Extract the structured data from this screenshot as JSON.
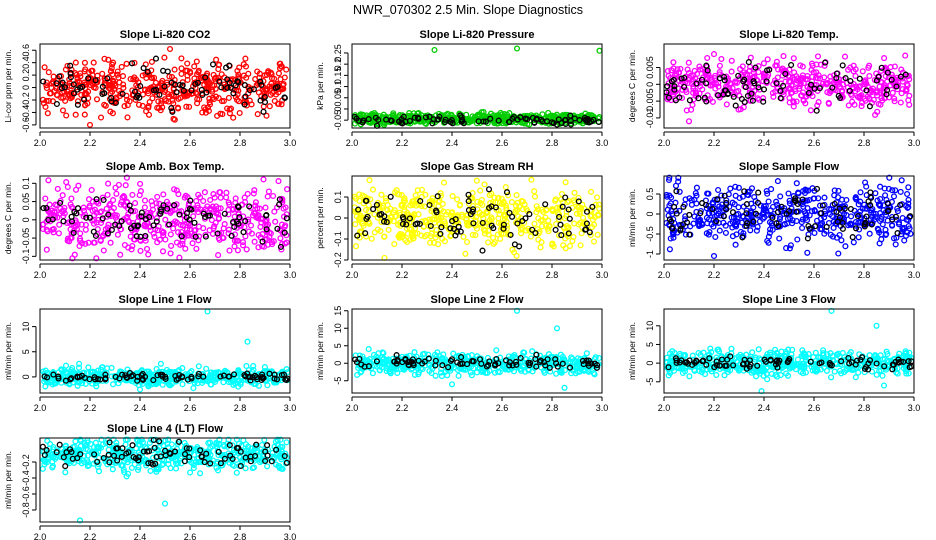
{
  "figure": {
    "title": "NWR_070302  2.5 Min. Slope Diagnostics"
  },
  "chart_data": [
    {
      "type": "scatter",
      "title": "Slope Li-820 CO2",
      "ylabel": "Li-cor ppm per min.",
      "xlim": [
        2.0,
        3.0
      ],
      "ylim": [
        -0.65,
        0.7
      ],
      "yticks": [
        -0.6,
        -0.4,
        -0.2,
        0.0,
        0.2,
        0.4,
        0.6
      ],
      "xticks": [
        2.0,
        2.2,
        2.4,
        2.6,
        2.8,
        3.0
      ],
      "series": [
        {
          "color": "#ff0000",
          "spread": 0.2,
          "outliers": [
            [
              2.52,
              0.62
            ],
            [
              2.2,
              -0.6
            ],
            [
              2.35,
              -0.48
            ]
          ]
        },
        {
          "color": "#000000",
          "spread": 0.18
        }
      ]
    },
    {
      "type": "scatter",
      "title": "Slope Li-820 Pressure",
      "ylabel": "kPa per min.",
      "xlim": [
        2.0,
        3.0
      ],
      "ylim": [
        -0.085,
        0.29
      ],
      "yticks": [
        -0.05,
        0.0,
        0.05,
        0.1,
        0.15,
        0.2,
        0.25
      ],
      "xticks": [
        2.0,
        2.2,
        2.4,
        2.6,
        2.8,
        3.0
      ],
      "series": [
        {
          "color": "#00cc00",
          "center": -0.045,
          "spread": 0.012,
          "outliers": [
            [
              2.33,
              0.263
            ],
            [
              2.66,
              0.27
            ],
            [
              2.99,
              0.26
            ]
          ]
        },
        {
          "color": "#000000",
          "center": -0.048,
          "spread": 0.01,
          "outliers": [
            [
              2.1,
              -0.075
            ],
            [
              2.82,
              -0.07
            ]
          ]
        }
      ]
    },
    {
      "type": "scatter",
      "title": "Slope Li-820 Temp.",
      "ylabel": "degrees C per min.",
      "xlim": [
        2.0,
        3.0
      ],
      "ylim": [
        -0.013,
        0.012
      ],
      "yticks": [
        -0.01,
        -0.005,
        0.0,
        0.005
      ],
      "xticks": [
        2.0,
        2.2,
        2.4,
        2.6,
        2.8,
        3.0
      ],
      "series": [
        {
          "color": "#ff00ff",
          "spread": 0.0035,
          "outliers": [
            [
              2.2,
              0.009
            ],
            [
              2.1,
              -0.011
            ]
          ]
        },
        {
          "color": "#000000",
          "spread": 0.003
        }
      ]
    },
    {
      "type": "scatter",
      "title": "Slope Amb. Box Temp.",
      "ylabel": "degrees C per min.",
      "xlim": [
        2.0,
        3.0
      ],
      "ylim": [
        -0.11,
        0.12
      ],
      "yticks": [
        -0.1,
        -0.05,
        0.0,
        0.05,
        0.1
      ],
      "xticks": [
        2.0,
        2.2,
        2.4,
        2.6,
        2.8,
        3.0
      ],
      "series": [
        {
          "color": "#ff00ff",
          "spread": 0.045
        },
        {
          "color": "#000000",
          "spread": 0.035
        }
      ]
    },
    {
      "type": "scatter",
      "title": "Slope Gas Stream RH",
      "ylabel": "percent per min.",
      "xlim": [
        2.0,
        3.0
      ],
      "ylim": [
        -0.2,
        0.2
      ],
      "yticks": [
        -0.2,
        -0.1,
        0.0,
        0.1
      ],
      "xticks": [
        2.0,
        2.2,
        2.4,
        2.6,
        2.8,
        3.0
      ],
      "series": [
        {
          "color": "#ffff00",
          "spread": 0.07,
          "outliers": [
            [
              2.07,
              0.18
            ],
            [
              2.13,
              -0.19
            ],
            [
              2.53,
              0.16
            ]
          ]
        },
        {
          "color": "#000000",
          "spread": 0.06
        }
      ]
    },
    {
      "type": "scatter",
      "title": "Slope Sample Flow",
      "ylabel": "ml/min per min.",
      "xlim": [
        2.0,
        3.0
      ],
      "ylim": [
        -1.15,
        0.95
      ],
      "yticks": [
        -1.0,
        -0.5,
        0.0,
        0.5
      ],
      "xticks": [
        2.0,
        2.2,
        2.4,
        2.6,
        2.8,
        3.0
      ],
      "series": [
        {
          "color": "#0000ff",
          "spread": 0.35,
          "outliers": [
            [
              2.02,
              0.85
            ],
            [
              2.2,
              -1.05
            ]
          ]
        },
        {
          "color": "#000000",
          "spread": 0.3
        }
      ]
    },
    {
      "type": "scatter",
      "title": "Slope Line 1 Flow",
      "ylabel": "ml/min per min.",
      "xlim": [
        2.0,
        3.0
      ],
      "ylim": [
        -3.2,
        13.5
      ],
      "yticks": [
        0,
        5,
        10
      ],
      "xticks": [
        2.0,
        2.2,
        2.4,
        2.6,
        2.8,
        3.0
      ],
      "series": [
        {
          "color": "#00ffff",
          "spread": 0.9,
          "outliers": [
            [
              2.67,
              13.0
            ],
            [
              2.83,
              7.0
            ],
            [
              2.4,
              -2.5
            ]
          ]
        },
        {
          "color": "#000000",
          "spread": 0.35
        }
      ]
    },
    {
      "type": "scatter",
      "title": "Slope Line 2 Flow",
      "ylabel": "ml/min per min.",
      "xlim": [
        2.0,
        3.0
      ],
      "ylim": [
        -8.5,
        15.5
      ],
      "yticks": [
        -5,
        0,
        5,
        10,
        15
      ],
      "xticks": [
        2.0,
        2.2,
        2.4,
        2.6,
        2.8,
        3.0
      ],
      "series": [
        {
          "color": "#00ffff",
          "spread": 1.5,
          "outliers": [
            [
              2.66,
              15.0
            ],
            [
              2.82,
              10.0
            ],
            [
              2.4,
              -6.0
            ],
            [
              2.85,
              -7.0
            ]
          ]
        },
        {
          "color": "#000000",
          "spread": 0.9
        }
      ]
    },
    {
      "type": "scatter",
      "title": "Slope Line 3 Flow",
      "ylabel": "ml/min per min.",
      "xlim": [
        2.0,
        3.0
      ],
      "ylim": [
        -8.0,
        14.5
      ],
      "yticks": [
        -5,
        0,
        5,
        10
      ],
      "xticks": [
        2.0,
        2.2,
        2.4,
        2.6,
        2.8,
        3.0
      ],
      "series": [
        {
          "color": "#00ffff",
          "spread": 1.6,
          "outliers": [
            [
              2.67,
              14.0
            ],
            [
              2.85,
              10.0
            ],
            [
              2.39,
              -7.5
            ],
            [
              2.88,
              -6.0
            ]
          ]
        },
        {
          "color": "#000000",
          "spread": 0.9
        }
      ]
    },
    {
      "type": "scatter",
      "title": "Slope Line 4 (LT) Flow",
      "ylabel": "ml/min per min.",
      "xlim": [
        2.0,
        3.0
      ],
      "ylim": [
        -0.95,
        0.1
      ],
      "yticks": [
        -0.8,
        -0.6,
        -0.4,
        -0.2
      ],
      "xticks": [
        2.0,
        2.2,
        2.4,
        2.6,
        2.8,
        3.0
      ],
      "series": [
        {
          "color": "#00ffff",
          "center": -0.1,
          "spread": 0.1,
          "outliers": [
            [
              2.5,
              -0.72
            ],
            [
              2.16,
              -0.93
            ]
          ]
        },
        {
          "color": "#000000",
          "center": -0.1,
          "spread": 0.08
        }
      ]
    }
  ]
}
